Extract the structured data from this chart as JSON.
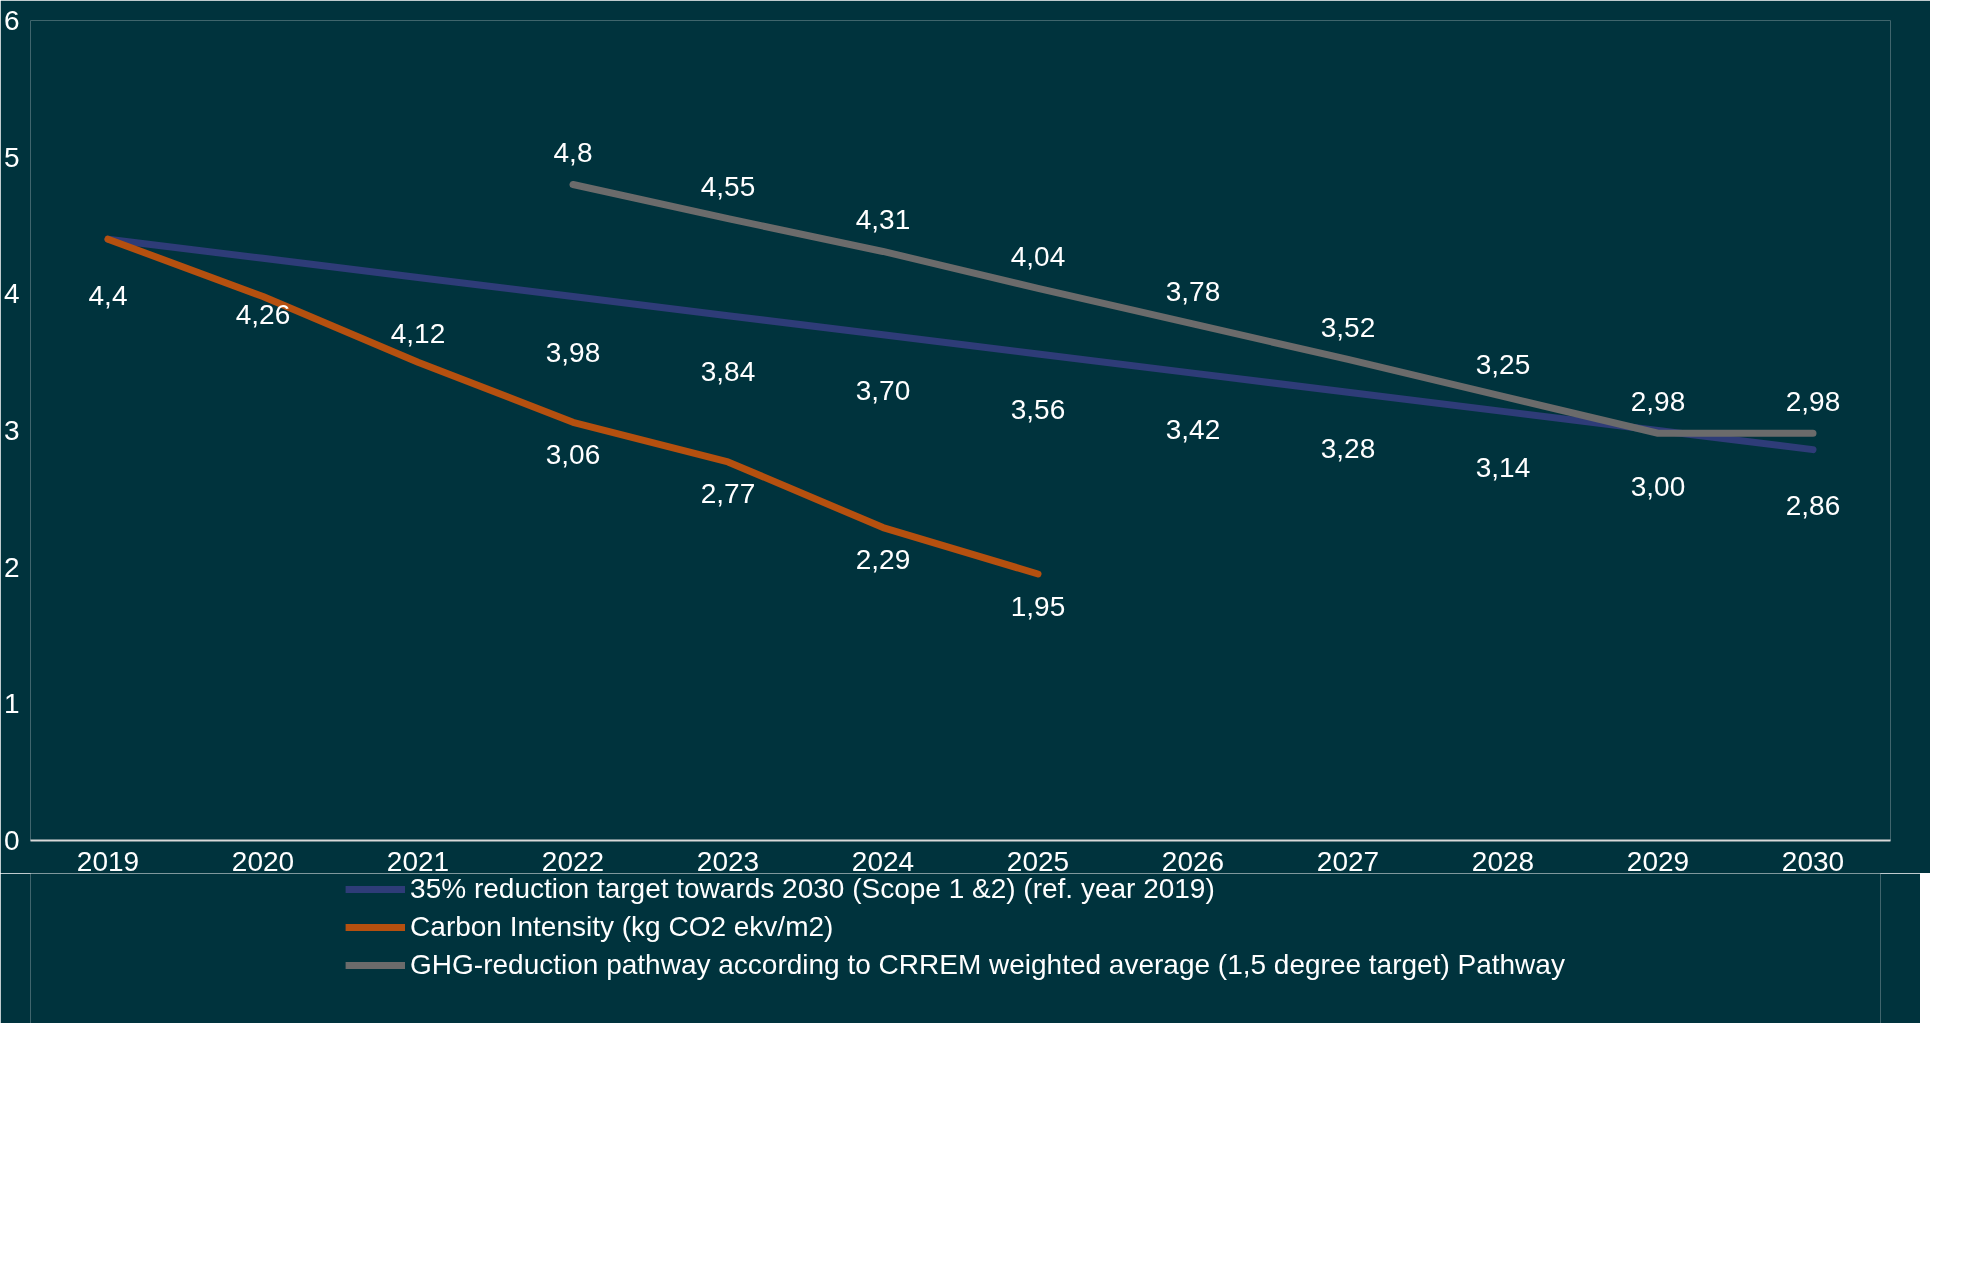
{
  "chart_data": {
    "type": "line",
    "categories": [
      "2019",
      "2020",
      "2021",
      "2022",
      "2023",
      "2024",
      "2025",
      "2026",
      "2027",
      "2028",
      "2029",
      "2030"
    ],
    "series": [
      {
        "name": "35% reduction target towards 2030 (Scope 1 &2) (ref. year 2019)",
        "color": "#2e3c78",
        "values": [
          4.4,
          4.26,
          4.12,
          3.98,
          3.84,
          3.7,
          3.56,
          3.42,
          3.28,
          3.14,
          3.0,
          2.86
        ],
        "value_labels": [
          "4,4",
          "4,26",
          "4,12",
          "3,98",
          "3,84",
          "3,70",
          "3,56",
          "3,42",
          "3,28",
          "3,14",
          "3,00",
          "2,86"
        ]
      },
      {
        "name": "Carbon Intensity (kg CO2 ekv/m2)",
        "color": "#b5500f",
        "values": [
          4.4,
          3.98,
          3.5,
          3.06,
          2.77,
          2.29,
          1.95,
          null,
          null,
          null,
          null,
          null
        ],
        "value_labels": [
          null,
          null,
          null,
          "3,06",
          "2,77",
          "2,29",
          "1,95",
          null,
          null,
          null,
          null,
          null
        ]
      },
      {
        "name": "GHG-reduction pathway according to CRREM weighted average (1,5 degree target) Pathway",
        "color": "#6b6b6b",
        "values": [
          null,
          null,
          null,
          4.8,
          4.55,
          4.31,
          4.04,
          3.78,
          3.52,
          3.25,
          2.98,
          2.98
        ],
        "value_labels": [
          null,
          null,
          null,
          "4,8",
          "4,55",
          "4,31",
          "4,04",
          "3,78",
          "3,52",
          "3,25",
          "2,98",
          "2,98"
        ]
      }
    ],
    "ylim": [
      0,
      6
    ],
    "yticks": [
      0,
      1,
      2,
      3,
      4,
      5,
      6
    ],
    "grid": false,
    "legend": "bottom",
    "marker": "none",
    "line_style": "solid"
  }
}
